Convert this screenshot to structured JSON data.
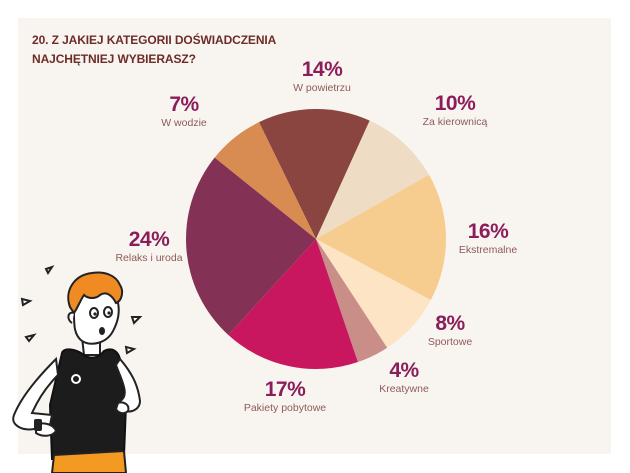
{
  "title": "20. Z JAKIEJ KATEGORII DOŚWIADCZENIA\nNAJCHĘTNIEJ WYBIERASZ?",
  "chart_data": {
    "type": "pie",
    "title": "20. Z JAKIEJ KATEGORII DOŚWIADCZENIA NAJCHĘTNIEJ WYBIERASZ?",
    "slices": [
      {
        "label": "W powietrzu",
        "value": 14,
        "pct_text": "14%",
        "color": "#8b4540"
      },
      {
        "label": "Za kierownicą",
        "value": 10,
        "pct_text": "10%",
        "color": "#efdcc5"
      },
      {
        "label": "Ekstremalne",
        "value": 16,
        "pct_text": "16%",
        "color": "#f7cc8f"
      },
      {
        "label": "Sportowe",
        "value": 8,
        "pct_text": "8%",
        "color": "#fde4c4"
      },
      {
        "label": "Kreatywne",
        "value": 4,
        "pct_text": "4%",
        "color": "#c98e88"
      },
      {
        "label": "Pakiety pobytowe",
        "value": 17,
        "pct_text": "17%",
        "color": "#c8175e"
      },
      {
        "label": "Relaks i uroda",
        "value": 24,
        "pct_text": "24%",
        "color": "#833154"
      },
      {
        "label": "W wodzie",
        "value": 7,
        "pct_text": "7%",
        "color": "#d98c51"
      }
    ]
  }
}
